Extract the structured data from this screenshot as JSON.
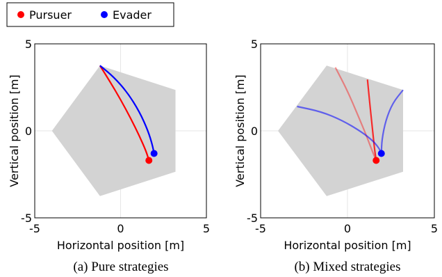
{
  "legend": {
    "entries": [
      {
        "label": "Pursuer",
        "color": "#ff0000"
      },
      {
        "label": "Evader",
        "color": "#0000ff"
      }
    ]
  },
  "chart_data": [
    {
      "type": "line",
      "caption": "(a) Pure strategies",
      "xlabel": "Horizontal position [m]",
      "ylabel": "Vertical position [m]",
      "xlim": [
        -5,
        5
      ],
      "ylim": [
        -5,
        5
      ],
      "xticks": [
        "-5",
        "0",
        "5"
      ],
      "yticks": [
        "-5",
        "0",
        "5"
      ],
      "grid": true,
      "region": [
        [
          -1.2,
          3.75
        ],
        [
          3.2,
          2.35
        ],
        [
          3.2,
          -2.35
        ],
        [
          -1.2,
          -3.75
        ],
        [
          -4.0,
          0.0
        ]
      ],
      "series": [
        {
          "name": "Pursuer",
          "color": "#ff0000",
          "opacity": 1.0,
          "x": [
            -1.2,
            -0.6,
            0.0,
            0.6,
            1.1,
            1.5,
            1.65
          ],
          "y": [
            3.75,
            2.8,
            1.8,
            0.7,
            -0.3,
            -1.2,
            -1.7
          ]
        },
        {
          "name": "Evader",
          "color": "#0000ff",
          "opacity": 1.0,
          "x": [
            -1.2,
            -0.4,
            0.4,
            1.1,
            1.6,
            1.85,
            1.95
          ],
          "y": [
            3.75,
            3.1,
            2.2,
            1.1,
            0.0,
            -0.8,
            -1.3
          ]
        }
      ],
      "markers": [
        {
          "name": "Pursuer",
          "color": "#ff0000",
          "x": 1.65,
          "y": -1.7
        },
        {
          "name": "Evader",
          "color": "#0000ff",
          "x": 1.95,
          "y": -1.3
        }
      ]
    },
    {
      "type": "line",
      "caption": "(b) Mixed strategies",
      "xlabel": "Horizontal position [m]",
      "ylabel": "Vertical position [m]",
      "xlim": [
        -5,
        5
      ],
      "ylim": [
        -5,
        5
      ],
      "xticks": [
        "-5",
        "0",
        "5"
      ],
      "yticks": [
        "-5",
        "0",
        "5"
      ],
      "grid": true,
      "region": [
        [
          -1.2,
          3.75
        ],
        [
          3.2,
          2.35
        ],
        [
          3.2,
          -2.35
        ],
        [
          -1.2,
          -3.75
        ],
        [
          -4.0,
          0.0
        ]
      ],
      "series": [
        {
          "name": "Pursuer",
          "color": "#ff0000",
          "opacity": 0.4,
          "x": [
            -0.7,
            0.0,
            0.6,
            1.1,
            1.4,
            1.65
          ],
          "y": [
            3.65,
            2.3,
            0.9,
            -0.3,
            -1.1,
            -1.7
          ]
        },
        {
          "name": "Pursuer",
          "color": "#ff0000",
          "opacity": 0.8,
          "x": [
            1.15,
            1.3,
            1.45,
            1.55,
            1.65
          ],
          "y": [
            2.95,
            1.4,
            0.0,
            -1.0,
            -1.7
          ]
        },
        {
          "name": "Evader",
          "color": "#0000ff",
          "opacity": 0.55,
          "x": [
            -2.9,
            -1.5,
            -0.3,
            0.8,
            1.5,
            1.85,
            1.95
          ],
          "y": [
            1.4,
            1.1,
            0.6,
            -0.05,
            -0.6,
            -1.05,
            -1.3
          ]
        },
        {
          "name": "Evader",
          "color": "#0000ff",
          "opacity": 0.55,
          "x": [
            3.2,
            2.6,
            2.2,
            1.98,
            1.95
          ],
          "y": [
            2.35,
            1.6,
            0.6,
            -0.5,
            -1.3
          ]
        }
      ],
      "markers": [
        {
          "name": "Pursuer",
          "color": "#ff0000",
          "x": 1.65,
          "y": -1.7
        },
        {
          "name": "Evader",
          "color": "#0000ff",
          "x": 1.95,
          "y": -1.3
        }
      ]
    }
  ]
}
